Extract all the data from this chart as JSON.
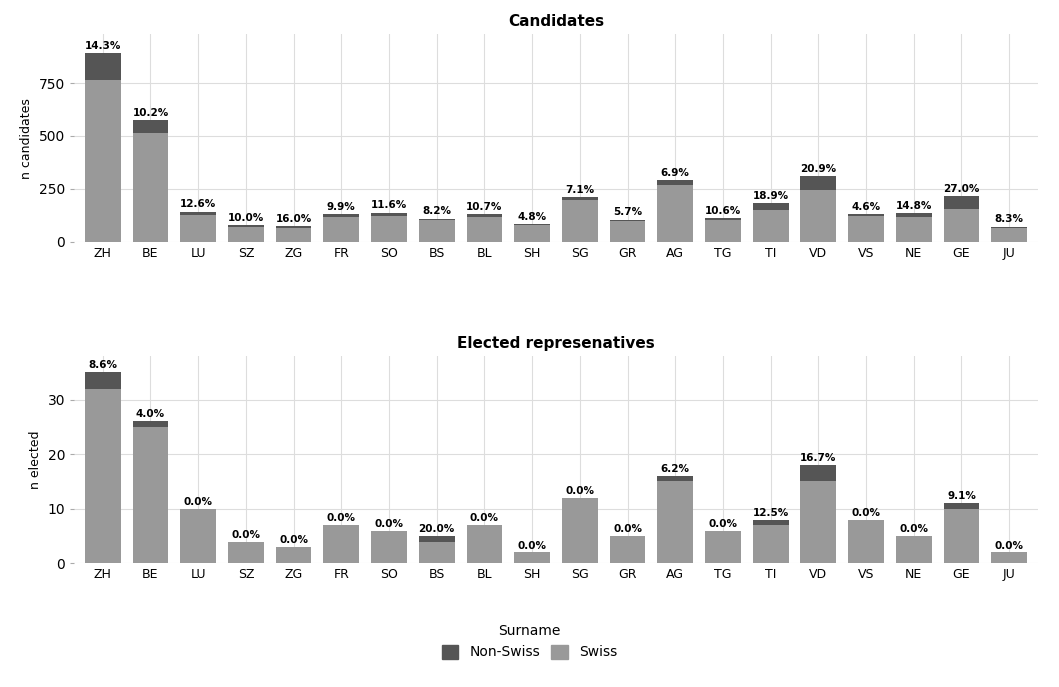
{
  "cantons": [
    "ZH",
    "BE",
    "LU",
    "SZ",
    "ZG",
    "FR",
    "SO",
    "BS",
    "BL",
    "SH",
    "SG",
    "GR",
    "AG",
    "TG",
    "TI",
    "VD",
    "VS",
    "NE",
    "GE",
    "JU"
  ],
  "candidates_total": [
    893,
    575,
    143,
    80,
    75,
    131,
    138,
    110,
    131,
    83,
    211,
    105,
    290,
    113,
    185,
    310,
    130,
    135,
    215,
    72
  ],
  "candidates_pct": [
    14.3,
    10.2,
    12.6,
    10.0,
    16.0,
    9.9,
    11.6,
    8.2,
    10.7,
    4.8,
    7.1,
    5.7,
    6.9,
    10.6,
    18.9,
    20.9,
    4.6,
    14.8,
    27.0,
    8.3
  ],
  "elected_total": [
    35,
    26,
    10,
    4,
    3,
    7,
    6,
    5,
    7,
    2,
    12,
    5,
    16,
    6,
    8,
    18,
    8,
    5,
    11,
    2
  ],
  "elected_pct": [
    8.6,
    4.0,
    0.0,
    0.0,
    0.0,
    0.0,
    0.0,
    20.0,
    0.0,
    0.0,
    0.0,
    0.0,
    6.2,
    0.0,
    12.5,
    16.7,
    0.0,
    0.0,
    9.1,
    0.0
  ],
  "color_nonswiss": "#555555",
  "color_swiss": "#999999",
  "title_candidates": "Candidates",
  "title_elected": "Elected represenatives",
  "ylabel_candidates": "n candidates",
  "ylabel_elected": "n elected",
  "legend_title": "Surname",
  "legend_nonswiss": "Non-Swiss",
  "legend_swiss": "Swiss",
  "background_color": "#ffffff",
  "grid_color": "#dddddd",
  "fig_background": "#ffffff"
}
